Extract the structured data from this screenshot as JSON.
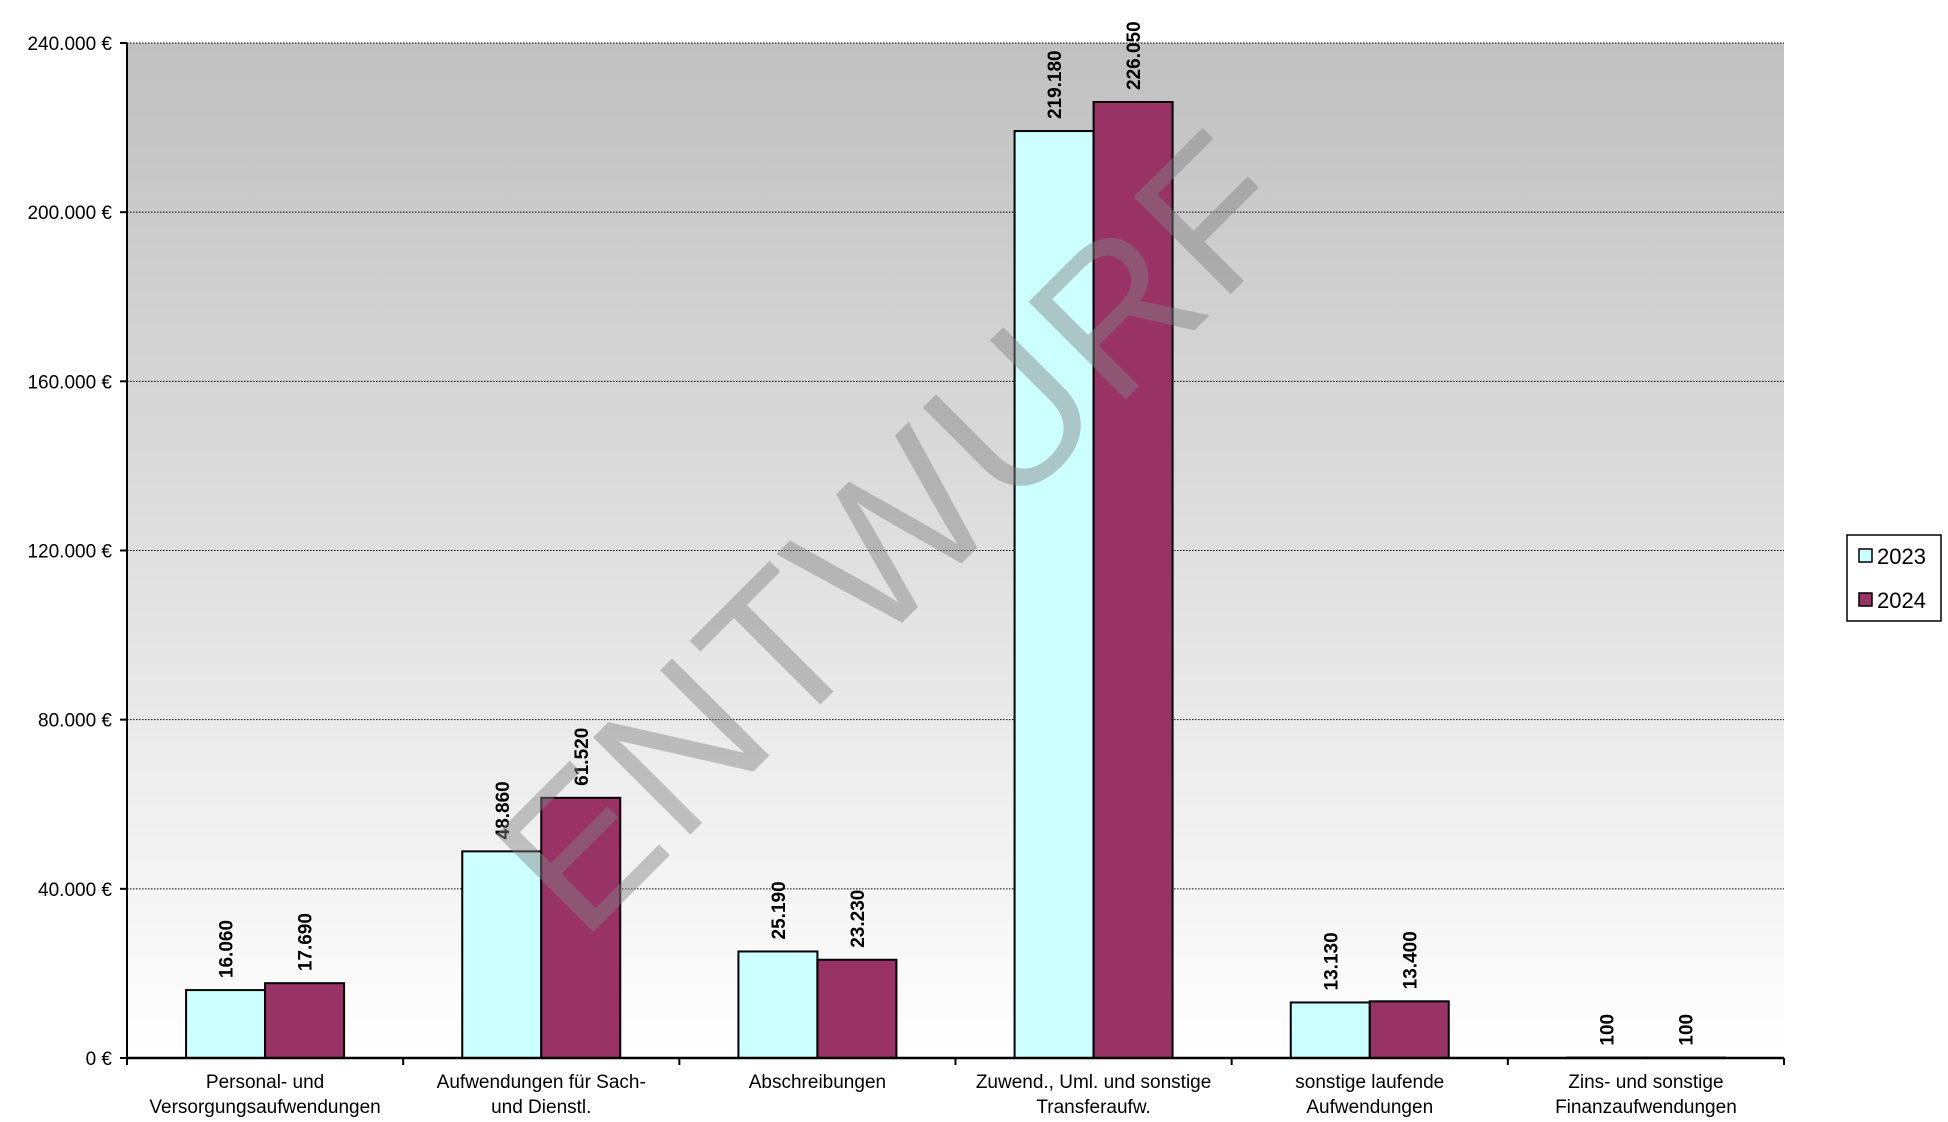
{
  "chart_data": {
    "type": "bar",
    "title": "",
    "xlabel": "",
    "ylabel": "",
    "categories": [
      [
        "Personal- und",
        "Versorgungsaufwendungen"
      ],
      [
        "Aufwendungen für Sach-",
        "und Dienstl."
      ],
      [
        "Abschreibungen"
      ],
      [
        "Zuwend., Uml. und sonstige",
        "Transferaufw."
      ],
      [
        "sonstige laufende",
        "Aufwendungen"
      ],
      [
        "Zins- und sonstige",
        "Finanzaufwendungen"
      ]
    ],
    "series": [
      {
        "name": "2023",
        "color": "#CCFFFF",
        "values": [
          16060,
          48860,
          25190,
          219180,
          13130,
          100
        ],
        "labels": [
          "16.060",
          "48.860",
          "25.190",
          "219.180",
          "13.130",
          "100"
        ]
      },
      {
        "name": "2024",
        "color": "#993366",
        "values": [
          17690,
          61520,
          23230,
          226050,
          13400,
          100
        ],
        "labels": [
          "17.690",
          "61.520",
          "23.230",
          "226.050",
          "13.400",
          "100"
        ]
      }
    ],
    "ylim": [
      0,
      240000
    ],
    "yticks": [
      0,
      40000,
      80000,
      120000,
      160000,
      200000,
      240000
    ],
    "ytick_labels": [
      "0 €",
      "40.000 €",
      "80.000 €",
      "120.000 €",
      "160.000 €",
      "200.000 €",
      "240.000 €"
    ],
    "grid": true,
    "legend_position": "right",
    "background_gradient": [
      "#C0C0C0",
      "#FFFFFF"
    ]
  },
  "watermark": "ENTWURF"
}
